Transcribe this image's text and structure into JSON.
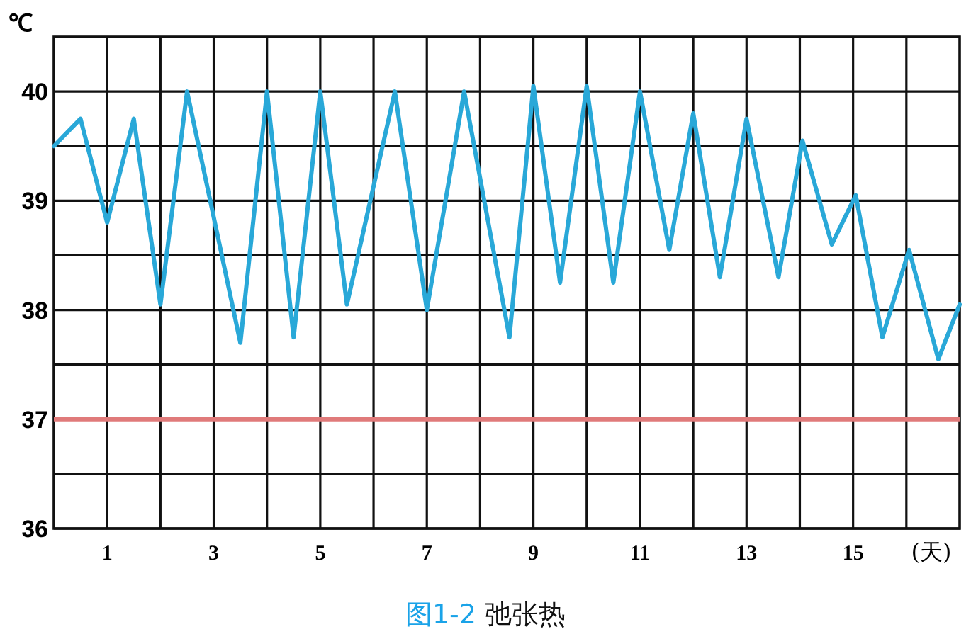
{
  "chart_data": {
    "type": "line",
    "title": "图1-2 弛张热",
    "ylabel": "℃",
    "xlabel": "(天)",
    "x": [
      0,
      0.5,
      1,
      1.5,
      2,
      2.5,
      3.5,
      4,
      4.5,
      5,
      5.5,
      6.4,
      7,
      7.7,
      8.55,
      9,
      9.5,
      10,
      10.5,
      11,
      11.55,
      12,
      12.5,
      13,
      13.6,
      14.05,
      14.6,
      15.05,
      15.55,
      16.05,
      16.6,
      17
    ],
    "series": [
      {
        "color": "#29a8d8",
        "values": [
          39.5,
          39.75,
          38.8,
          39.75,
          38.05,
          40,
          37.7,
          40,
          37.75,
          40,
          38.05,
          40,
          38,
          40,
          37.75,
          40.05,
          38.25,
          40.05,
          38.25,
          40,
          38.55,
          39.8,
          38.3,
          39.75,
          38.3,
          39.55,
          38.6,
          39.05,
          37.75,
          38.55,
          37.55,
          38.05
        ]
      }
    ],
    "xlim": [
      0,
      17
    ],
    "xticks": [
      1,
      {
        "value": 2,
        "label": null
      },
      3,
      {
        "value": 4,
        "label": null
      },
      5,
      {
        "value": 6,
        "label": null
      },
      7,
      {
        "value": 8,
        "label": null
      },
      9,
      {
        "value": 10,
        "label": null
      },
      11,
      {
        "value": 12,
        "label": null
      },
      13,
      {
        "value": 14,
        "label": null
      },
      15,
      {
        "value": 16,
        "label": null
      }
    ],
    "ylim": [
      36,
      40.5
    ],
    "yticks": [
      36,
      {
        "value": 36.5,
        "label": null
      },
      37,
      {
        "value": 37.5,
        "label": null
      },
      38,
      {
        "value": 38.5,
        "label": null
      },
      39,
      {
        "value": 39.5,
        "label": null
      },
      40
    ],
    "grid": true,
    "line_style": "solid",
    "marker": "none",
    "ref_lines": [
      {
        "axis": "y",
        "value": 37,
        "color": "#e07a7a"
      }
    ]
  }
}
